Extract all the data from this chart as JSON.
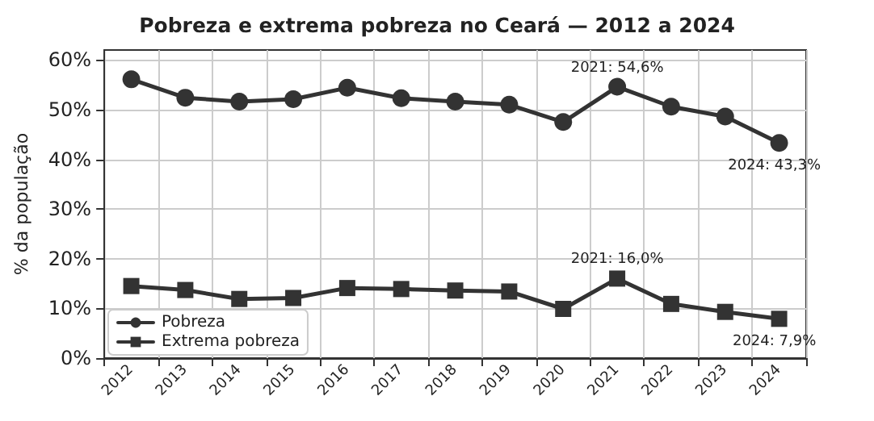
{
  "chart_data": {
    "type": "line",
    "title": "Pobreza e extrema pobreza no Ceará — 2012 a 2024",
    "ylabel": "% da população",
    "categories": [
      "2012",
      "2013",
      "2014",
      "2015",
      "2016",
      "2017",
      "2018",
      "2019",
      "2020",
      "2021",
      "2022",
      "2023",
      "2024"
    ],
    "series": [
      {
        "name": "Pobreza",
        "color": "#333333",
        "marker": "circle",
        "values": [
          56.1,
          52.4,
          51.6,
          52.1,
          54.4,
          52.3,
          51.6,
          51.0,
          47.5,
          54.6,
          50.6,
          48.6,
          43.3
        ]
      },
      {
        "name": "Extrema pobreza",
        "color": "#333333",
        "marker": "square",
        "values": [
          14.5,
          13.7,
          11.9,
          12.1,
          14.1,
          13.9,
          13.6,
          13.4,
          9.9,
          16.0,
          10.9,
          9.3,
          7.9
        ]
      }
    ],
    "ylim": [
      0,
      62
    ],
    "yticks": [
      {
        "value": 0,
        "label": "0%"
      },
      {
        "value": 10,
        "label": "10%"
      },
      {
        "value": 20,
        "label": "20%"
      },
      {
        "value": 30,
        "label": "30%"
      },
      {
        "value": 40,
        "label": "40%"
      },
      {
        "value": 50,
        "label": "50%"
      },
      {
        "value": 60,
        "label": "60%"
      }
    ],
    "annotations": [
      {
        "text": "2021: 54,6%",
        "x": "2021",
        "y": 54.6
      },
      {
        "text": "2024: 43,3%",
        "x": "2024",
        "y": 43.3
      },
      {
        "text": "2021: 16,0%",
        "x": "2021",
        "y": 16.0
      },
      {
        "text": "2024: 7,9%",
        "x": "2024",
        "y": 7.9
      }
    ],
    "grid": true,
    "legend": "bottom left",
    "line_style": "solid"
  }
}
